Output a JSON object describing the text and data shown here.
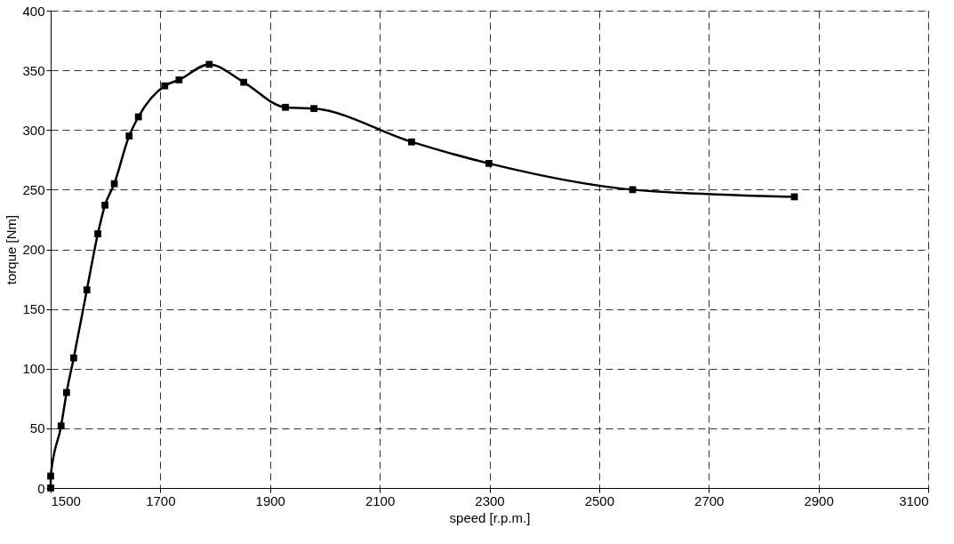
{
  "chart_data": {
    "type": "line",
    "xlabel": "speed [r.p.m.]",
    "ylabel": "torque [Nm]",
    "x": [
      1500,
      1500,
      1519,
      1529,
      1542,
      1566,
      1586,
      1599,
      1616,
      1643,
      1660,
      1708,
      1734,
      1789,
      1852,
      1928,
      1980,
      2158,
      2299,
      2561,
      2856
    ],
    "series": [
      {
        "color": "#000000",
        "values": [
          0,
          10,
          52,
          80,
          109,
          166,
          213,
          237,
          255,
          295,
          311,
          337,
          342,
          355,
          340,
          319,
          318,
          290,
          272,
          250,
          244
        ]
      }
    ],
    "xlim": [
      1500,
      3100
    ],
    "xticks": [
      1500,
      1700,
      1900,
      2100,
      2300,
      2500,
      2700,
      2900,
      3100
    ],
    "ylim": [
      0,
      400
    ],
    "yticks": [
      0,
      50,
      100,
      150,
      200,
      250,
      300,
      350,
      400
    ],
    "grid": true,
    "marker": "square",
    "line_style": "solid"
  }
}
